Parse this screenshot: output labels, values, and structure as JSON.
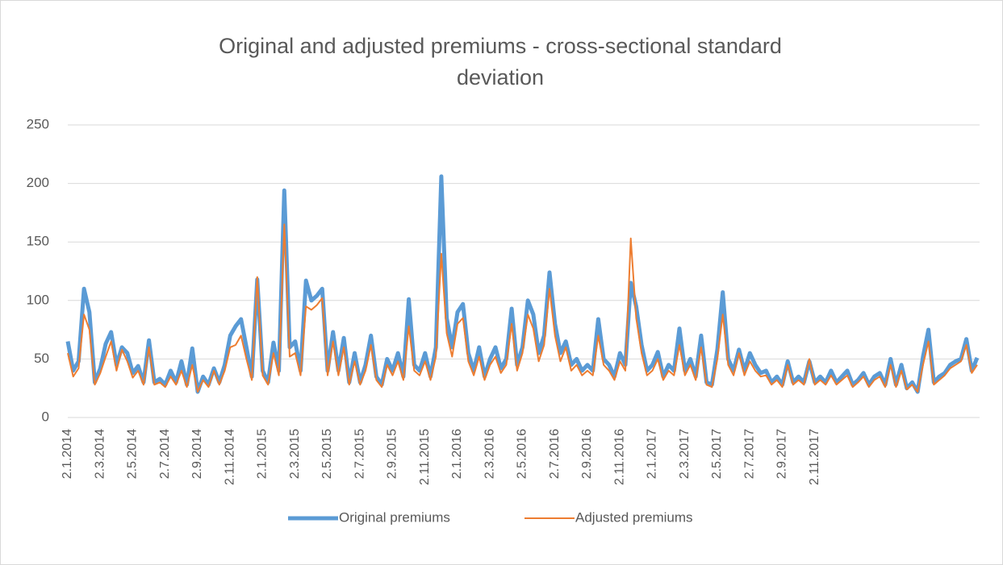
{
  "chart_data": {
    "type": "line",
    "title": "Original and adjusted premiums - cross-sectional standard deviation",
    "categories": [
      "2.1.2014",
      null,
      null,
      null,
      null,
      null,
      "2.3.2014",
      null,
      null,
      null,
      null,
      null,
      "2.5.2014",
      null,
      null,
      null,
      null,
      null,
      "2.7.2014",
      null,
      null,
      null,
      null,
      null,
      "2.9.2014",
      null,
      null,
      null,
      null,
      null,
      "2.11.2014",
      null,
      null,
      null,
      null,
      null,
      "2.1.2015",
      null,
      null,
      null,
      null,
      null,
      "2.3.2015",
      null,
      null,
      null,
      null,
      null,
      "2.5.2015",
      null,
      null,
      null,
      null,
      null,
      "2.7.2015",
      null,
      null,
      null,
      null,
      null,
      "2.9.2015",
      null,
      null,
      null,
      null,
      null,
      "2.11.2015",
      null,
      null,
      null,
      null,
      null,
      "2.1.2016",
      null,
      null,
      null,
      null,
      null,
      "2.3.2016",
      null,
      null,
      null,
      null,
      null,
      "2.5.2016",
      null,
      null,
      null,
      null,
      null,
      "2.7.2016",
      null,
      null,
      null,
      null,
      null,
      "2.9.2016",
      null,
      null,
      null,
      null,
      null,
      "2.11.2016",
      null,
      null,
      null,
      null,
      null,
      "2.1.2017",
      null,
      null,
      null,
      null,
      null,
      "2.3.2017",
      null,
      null,
      null,
      null,
      null,
      "2.5.2017",
      null,
      null,
      null,
      null,
      null,
      "2.7.2017",
      null,
      null,
      null,
      null,
      null,
      "2.9.2017",
      null,
      null,
      null,
      null,
      null,
      "2.11.2017",
      null,
      null,
      null,
      null,
      null,
      null,
      null,
      null,
      null,
      null,
      null,
      null,
      null,
      null,
      null,
      null,
      null,
      null,
      null,
      null,
      null,
      null,
      null,
      null,
      null,
      null,
      null,
      null,
      null,
      null
    ],
    "series": [
      {
        "name": "Original premiums",
        "color": "#5b9bd5",
        "values": [
          65,
          40,
          48,
          110,
          90,
          30,
          42,
          63,
          73,
          45,
          60,
          55,
          38,
          44,
          30,
          66,
          30,
          33,
          28,
          40,
          30,
          48,
          28,
          59,
          22,
          35,
          28,
          42,
          30,
          45,
          70,
          78,
          84,
          60,
          35,
          118,
          40,
          30,
          64,
          40,
          194,
          60,
          65,
          40,
          117,
          100,
          104,
          110,
          40,
          73,
          40,
          68,
          30,
          55,
          30,
          45,
          70,
          35,
          28,
          50,
          40,
          55,
          35,
          101,
          45,
          40,
          55,
          35,
          60,
          206,
          85,
          60,
          90,
          97,
          55,
          40,
          60,
          35,
          50,
          60,
          42,
          50,
          93,
          45,
          60,
          100,
          88,
          55,
          70,
          124,
          80,
          55,
          65,
          45,
          50,
          40,
          45,
          40,
          84,
          50,
          45,
          35,
          55,
          45,
          115,
          95,
          62,
          40,
          45,
          56,
          35,
          45,
          40,
          76,
          40,
          50,
          35,
          70,
          30,
          28,
          58,
          107,
          50,
          40,
          58,
          40,
          55,
          45,
          38,
          40,
          30,
          35,
          28,
          48,
          30,
          35,
          30,
          48,
          30,
          35,
          30,
          40,
          30,
          35,
          40,
          28,
          32,
          38,
          28,
          35,
          38,
          28,
          50,
          28,
          45,
          25,
          30,
          22,
          52,
          75,
          30,
          35,
          38,
          45,
          48,
          50,
          67,
          40,
          51
        ]
      },
      {
        "name": "Adjusted premiums",
        "color": "#ed7d31",
        "values": [
          55,
          35,
          42,
          88,
          75,
          28,
          38,
          52,
          65,
          40,
          58,
          48,
          34,
          40,
          28,
          60,
          28,
          30,
          26,
          35,
          28,
          40,
          26,
          45,
          22,
          32,
          26,
          40,
          28,
          40,
          60,
          62,
          70,
          50,
          32,
          120,
          36,
          28,
          55,
          36,
          165,
          52,
          55,
          36,
          95,
          92,
          96,
          102,
          36,
          65,
          36,
          60,
          28,
          48,
          28,
          40,
          62,
          32,
          26,
          45,
          36,
          48,
          32,
          78,
          40,
          36,
          48,
          32,
          52,
          140,
          72,
          52,
          80,
          85,
          48,
          36,
          52,
          32,
          45,
          52,
          38,
          45,
          80,
          40,
          55,
          88,
          76,
          48,
          62,
          110,
          70,
          48,
          60,
          40,
          45,
          36,
          40,
          36,
          70,
          45,
          40,
          32,
          48,
          40,
          153,
          85,
          55,
          36,
          40,
          50,
          32,
          40,
          36,
          62,
          36,
          45,
          32,
          60,
          28,
          26,
          50,
          88,
          45,
          36,
          55,
          36,
          48,
          40,
          35,
          36,
          28,
          32,
          26,
          45,
          28,
          32,
          28,
          50,
          28,
          32,
          28,
          36,
          28,
          32,
          36,
          26,
          30,
          35,
          26,
          32,
          35,
          26,
          45,
          26,
          40,
          24,
          28,
          22,
          45,
          65,
          28,
          32,
          36,
          42,
          45,
          48,
          62,
          38,
          45
        ]
      }
    ],
    "ylim": [
      0,
      250
    ],
    "yticks": [
      0,
      50,
      100,
      150,
      200,
      250
    ],
    "grid": true,
    "legend": "bottom"
  }
}
